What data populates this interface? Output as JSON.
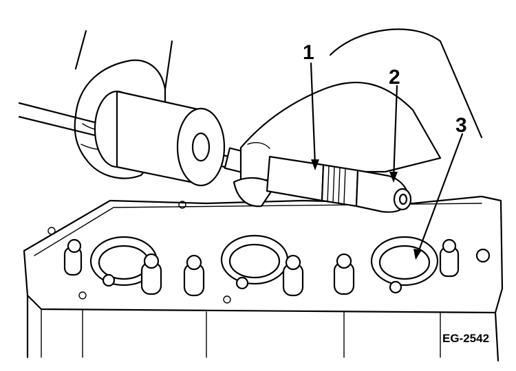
{
  "diagram": {
    "callouts": [
      {
        "id": "1",
        "label": "1"
      },
      {
        "id": "2",
        "label": "2"
      },
      {
        "id": "3",
        "label": "3"
      }
    ],
    "figure_code": "EG-2542"
  }
}
